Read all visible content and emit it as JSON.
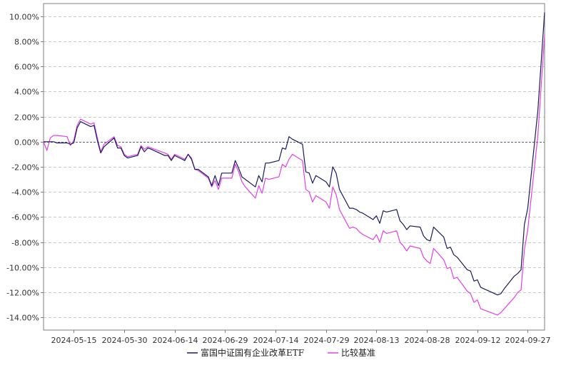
{
  "chart_data": {
    "type": "line",
    "title": "",
    "xlabel": "",
    "ylabel": "",
    "ylim": [
      -15,
      11
    ],
    "yticks": [
      10,
      8,
      6,
      4,
      2,
      0,
      -2,
      -4,
      -6,
      -8,
      -10,
      -12,
      -14
    ],
    "ytick_labels": [
      "10.00%",
      "8.00%",
      "6.00%",
      "4.00%",
      "2.00%",
      "0.00%",
      "-2.00%",
      "-4.00%",
      "-6.00%",
      "-8.00%",
      "-10.00%",
      "-12.00%",
      "-14.00%"
    ],
    "xlim": [
      "2024-05-06",
      "2024-09-30"
    ],
    "xticks": [
      "2024-05-15",
      "2024-05-30",
      "2024-06-14",
      "2024-06-29",
      "2024-07-14",
      "2024-07-29",
      "2024-08-13",
      "2024-08-28",
      "2024-09-12",
      "2024-09-27"
    ],
    "grid": "horizontal dashed",
    "zero_line": true,
    "legend_position": "bottom-center",
    "series": [
      {
        "name": "富国中证国有企业改革ETF",
        "color": "#1b1b5e",
        "points": [
          [
            "2024-05-06",
            0.0
          ],
          [
            "2024-05-07",
            0.0
          ],
          [
            "2024-05-08",
            0.0
          ],
          [
            "2024-05-09",
            0.0
          ],
          [
            "2024-05-10",
            -0.1
          ],
          [
            "2024-05-13",
            -0.1
          ],
          [
            "2024-05-14",
            -0.2
          ],
          [
            "2024-05-15",
            -0.1
          ],
          [
            "2024-05-16",
            1.1
          ],
          [
            "2024-05-17",
            1.6
          ],
          [
            "2024-05-20",
            1.2
          ],
          [
            "2024-05-21",
            1.3
          ],
          [
            "2024-05-22",
            0.1
          ],
          [
            "2024-05-23",
            -0.9
          ],
          [
            "2024-05-24",
            -0.4
          ],
          [
            "2024-05-27",
            0.3
          ],
          [
            "2024-05-28",
            -0.5
          ],
          [
            "2024-05-29",
            -0.5
          ],
          [
            "2024-05-30",
            -1.1
          ],
          [
            "2024-05-31",
            -1.3
          ],
          [
            "2024-06-03",
            -1.1
          ],
          [
            "2024-06-04",
            -0.4
          ],
          [
            "2024-06-05",
            -0.8
          ],
          [
            "2024-06-06",
            -0.5
          ],
          [
            "2024-06-07",
            -0.6
          ],
          [
            "2024-06-11",
            -1.1
          ],
          [
            "2024-06-12",
            -1.1
          ],
          [
            "2024-06-13",
            -1.5
          ],
          [
            "2024-06-14",
            -1.1
          ],
          [
            "2024-06-17",
            -1.5
          ],
          [
            "2024-06-18",
            -1.0
          ],
          [
            "2024-06-19",
            -1.4
          ],
          [
            "2024-06-20",
            -2.2
          ],
          [
            "2024-06-21",
            -2.2
          ],
          [
            "2024-06-24",
            -2.8
          ],
          [
            "2024-06-25",
            -3.5
          ],
          [
            "2024-06-26",
            -2.7
          ],
          [
            "2024-06-27",
            -3.5
          ],
          [
            "2024-06-28",
            -2.5
          ],
          [
            "2024-07-01",
            -2.5
          ],
          [
            "2024-07-02",
            -1.5
          ],
          [
            "2024-07-03",
            -2.1
          ],
          [
            "2024-07-04",
            -2.8
          ],
          [
            "2024-07-05",
            -3.0
          ],
          [
            "2024-07-08",
            -3.6
          ],
          [
            "2024-07-09",
            -2.7
          ],
          [
            "2024-07-10",
            -3.2
          ],
          [
            "2024-07-11",
            -1.7
          ],
          [
            "2024-07-12",
            -1.7
          ],
          [
            "2024-07-15",
            -1.5
          ],
          [
            "2024-07-16",
            -0.5
          ],
          [
            "2024-07-17",
            -0.6
          ],
          [
            "2024-07-18",
            0.4
          ],
          [
            "2024-07-19",
            0.2
          ],
          [
            "2024-07-22",
            -0.2
          ],
          [
            "2024-07-23",
            -2.4
          ],
          [
            "2024-07-24",
            -2.5
          ],
          [
            "2024-07-25",
            -3.3
          ],
          [
            "2024-07-26",
            -2.7
          ],
          [
            "2024-07-29",
            -3.2
          ],
          [
            "2024-07-30",
            -3.6
          ],
          [
            "2024-07-31",
            -2.0
          ],
          [
            "2024-08-01",
            -2.5
          ],
          [
            "2024-08-02",
            -3.8
          ],
          [
            "2024-08-05",
            -5.3
          ],
          [
            "2024-08-06",
            -5.3
          ],
          [
            "2024-08-07",
            -5.4
          ],
          [
            "2024-08-08",
            -5.6
          ],
          [
            "2024-08-09",
            -5.7
          ],
          [
            "2024-08-12",
            -6.2
          ],
          [
            "2024-08-13",
            -5.9
          ],
          [
            "2024-08-14",
            -6.5
          ],
          [
            "2024-08-15",
            -5.5
          ],
          [
            "2024-08-16",
            -5.6
          ],
          [
            "2024-08-19",
            -5.4
          ],
          [
            "2024-08-20",
            -6.3
          ],
          [
            "2024-08-21",
            -6.6
          ],
          [
            "2024-08-22",
            -7.0
          ],
          [
            "2024-08-23",
            -6.7
          ],
          [
            "2024-08-26",
            -6.8
          ],
          [
            "2024-08-27",
            -7.5
          ],
          [
            "2024-08-28",
            -7.8
          ],
          [
            "2024-08-29",
            -7.9
          ],
          [
            "2024-08-30",
            -6.8
          ],
          [
            "2024-09-02",
            -7.6
          ],
          [
            "2024-09-03",
            -8.5
          ],
          [
            "2024-09-04",
            -8.4
          ],
          [
            "2024-09-05",
            -9.0
          ],
          [
            "2024-09-06",
            -9.2
          ],
          [
            "2024-09-09",
            -10.2
          ],
          [
            "2024-09-10",
            -10.3
          ],
          [
            "2024-09-11",
            -11.1
          ],
          [
            "2024-09-12",
            -11.0
          ],
          [
            "2024-09-13",
            -11.6
          ],
          [
            "2024-09-18",
            -12.2
          ],
          [
            "2024-09-19",
            -12.1
          ],
          [
            "2024-09-20",
            -11.7
          ],
          [
            "2024-09-23",
            -10.7
          ],
          [
            "2024-09-24",
            -10.5
          ],
          [
            "2024-09-25",
            -10.2
          ],
          [
            "2024-09-26",
            -6.6
          ],
          [
            "2024-09-27",
            -5.3
          ],
          [
            "2024-09-30",
            2.5
          ],
          [
            "2024-10-02",
            10.3
          ]
        ]
      },
      {
        "name": "比较基准",
        "color": "#e040e6",
        "points": [
          [
            "2024-05-06",
            0.0
          ],
          [
            "2024-05-07",
            -0.7
          ],
          [
            "2024-05-08",
            0.3
          ],
          [
            "2024-05-09",
            0.5
          ],
          [
            "2024-05-10",
            0.5
          ],
          [
            "2024-05-13",
            0.4
          ],
          [
            "2024-05-14",
            -0.3
          ],
          [
            "2024-05-15",
            0.1
          ],
          [
            "2024-05-16",
            1.3
          ],
          [
            "2024-05-17",
            1.8
          ],
          [
            "2024-05-20",
            1.4
          ],
          [
            "2024-05-21",
            1.5
          ],
          [
            "2024-05-22",
            0.3
          ],
          [
            "2024-05-23",
            -0.8
          ],
          [
            "2024-05-24",
            -0.2
          ],
          [
            "2024-05-27",
            0.4
          ],
          [
            "2024-05-28",
            -0.3
          ],
          [
            "2024-05-29",
            -0.4
          ],
          [
            "2024-05-30",
            -1.0
          ],
          [
            "2024-05-31",
            -1.2
          ],
          [
            "2024-06-03",
            -1.0
          ],
          [
            "2024-06-04",
            -0.3
          ],
          [
            "2024-06-05",
            -0.6
          ],
          [
            "2024-06-06",
            -0.4
          ],
          [
            "2024-06-07",
            -0.5
          ],
          [
            "2024-06-11",
            -0.9
          ],
          [
            "2024-06-12",
            -1.0
          ],
          [
            "2024-06-13",
            -1.4
          ],
          [
            "2024-06-14",
            -1.0
          ],
          [
            "2024-06-17",
            -1.4
          ],
          [
            "2024-06-18",
            -1.0
          ],
          [
            "2024-06-19",
            -1.3
          ],
          [
            "2024-06-20",
            -2.2
          ],
          [
            "2024-06-21",
            -2.3
          ],
          [
            "2024-06-24",
            -2.9
          ],
          [
            "2024-06-25",
            -3.6
          ],
          [
            "2024-06-26",
            -3.1
          ],
          [
            "2024-06-27",
            -3.8
          ],
          [
            "2024-06-28",
            -2.9
          ],
          [
            "2024-07-01",
            -2.9
          ],
          [
            "2024-07-02",
            -1.8
          ],
          [
            "2024-07-03",
            -2.4
          ],
          [
            "2024-07-04",
            -3.2
          ],
          [
            "2024-07-05",
            -3.6
          ],
          [
            "2024-07-08",
            -4.5
          ],
          [
            "2024-07-09",
            -3.5
          ],
          [
            "2024-07-10",
            -4.1
          ],
          [
            "2024-07-11",
            -2.9
          ],
          [
            "2024-07-12",
            -3.0
          ],
          [
            "2024-07-15",
            -2.8
          ],
          [
            "2024-07-16",
            -1.8
          ],
          [
            "2024-07-17",
            -2.0
          ],
          [
            "2024-07-18",
            -1.4
          ],
          [
            "2024-07-19",
            -1.0
          ],
          [
            "2024-07-22",
            -1.5
          ],
          [
            "2024-07-23",
            -3.8
          ],
          [
            "2024-07-24",
            -4.0
          ],
          [
            "2024-07-25",
            -4.8
          ],
          [
            "2024-07-26",
            -4.3
          ],
          [
            "2024-07-29",
            -4.8
          ],
          [
            "2024-07-30",
            -5.3
          ],
          [
            "2024-07-31",
            -3.6
          ],
          [
            "2024-08-01",
            -4.2
          ],
          [
            "2024-08-02",
            -5.4
          ],
          [
            "2024-08-05",
            -6.9
          ],
          [
            "2024-08-06",
            -6.8
          ],
          [
            "2024-08-07",
            -6.9
          ],
          [
            "2024-08-08",
            -7.2
          ],
          [
            "2024-08-09",
            -7.4
          ],
          [
            "2024-08-12",
            -7.8
          ],
          [
            "2024-08-13",
            -7.4
          ],
          [
            "2024-08-14",
            -8.0
          ],
          [
            "2024-08-15",
            -7.1
          ],
          [
            "2024-08-16",
            -7.3
          ],
          [
            "2024-08-19",
            -7.1
          ],
          [
            "2024-08-20",
            -8.0
          ],
          [
            "2024-08-21",
            -8.3
          ],
          [
            "2024-08-22",
            -8.7
          ],
          [
            "2024-08-23",
            -8.3
          ],
          [
            "2024-08-26",
            -8.5
          ],
          [
            "2024-08-27",
            -9.2
          ],
          [
            "2024-08-28",
            -9.5
          ],
          [
            "2024-08-29",
            -9.7
          ],
          [
            "2024-08-30",
            -8.5
          ],
          [
            "2024-09-02",
            -9.4
          ],
          [
            "2024-09-03",
            -10.1
          ],
          [
            "2024-09-04",
            -10.0
          ],
          [
            "2024-09-05",
            -10.9
          ],
          [
            "2024-09-06",
            -10.8
          ],
          [
            "2024-09-09",
            -11.9
          ],
          [
            "2024-09-10",
            -12.1
          ],
          [
            "2024-09-11",
            -12.8
          ],
          [
            "2024-09-12",
            -12.6
          ],
          [
            "2024-09-13",
            -13.3
          ],
          [
            "2024-09-18",
            -13.8
          ],
          [
            "2024-09-19",
            -13.6
          ],
          [
            "2024-09-20",
            -13.3
          ],
          [
            "2024-09-23",
            -12.4
          ],
          [
            "2024-09-24",
            -12.0
          ],
          [
            "2024-09-25",
            -11.8
          ],
          [
            "2024-09-26",
            -8.6
          ],
          [
            "2024-09-27",
            -7.0
          ],
          [
            "2024-09-30",
            0.5
          ],
          [
            "2024-10-02",
            8.5
          ]
        ]
      }
    ]
  }
}
